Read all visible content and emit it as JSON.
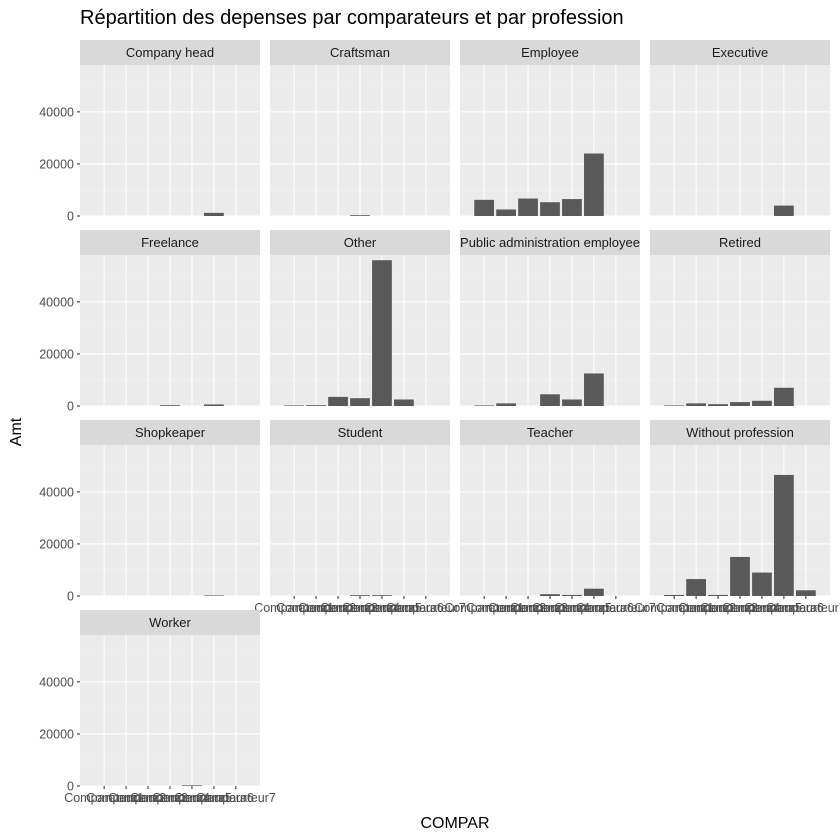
{
  "chart_data": {
    "type": "bar",
    "layout": "facet_wrap",
    "title": "Répartition des depenses par comparateurs et  par profession",
    "xlabel": "COMPAR",
    "ylabel": "Amt",
    "ylim": [
      0,
      58000
    ],
    "y_ticks": [
      0,
      20000,
      40000
    ],
    "y_tick_labels": [
      "0",
      "20000",
      "40000"
    ],
    "categories": [
      "Comparateur1",
      "Comparateur2",
      "Comparateur3",
      "Comparateur4",
      "Comparateur5",
      "Comparateur6",
      "Comparateur7"
    ],
    "x_tick_labels": [
      "Comparateur1",
      "Comparateur2",
      "Comparateur3",
      "Comparateur4",
      "Comparateur5",
      "Comparateur6",
      "Comparateur7"
    ],
    "facets": [
      {
        "name": "Company head",
        "values": [
          0,
          0,
          0,
          0,
          0,
          1200,
          0
        ]
      },
      {
        "name": "Craftsman",
        "values": [
          0,
          0,
          0,
          300,
          0,
          0,
          0
        ]
      },
      {
        "name": "Employee",
        "values": [
          6200,
          2500,
          6700,
          5300,
          6500,
          24000,
          0
        ]
      },
      {
        "name": "Executive",
        "values": [
          0,
          0,
          0,
          0,
          0,
          4000,
          0
        ]
      },
      {
        "name": "Freelance",
        "values": [
          0,
          0,
          0,
          300,
          0,
          600,
          0
        ]
      },
      {
        "name": "Other",
        "values": [
          200,
          300,
          3500,
          3000,
          56000,
          2500,
          0
        ]
      },
      {
        "name": "Public administration employee",
        "values": [
          200,
          1000,
          0,
          4500,
          2500,
          12500,
          0
        ]
      },
      {
        "name": "Retired",
        "values": [
          200,
          1000,
          700,
          1500,
          2000,
          7000,
          0
        ]
      },
      {
        "name": "Shopkeaper",
        "values": [
          0,
          0,
          0,
          0,
          0,
          200,
          0
        ]
      },
      {
        "name": "Student",
        "values": [
          0,
          0,
          0,
          300,
          300,
          0,
          0
        ]
      },
      {
        "name": "Teacher",
        "values": [
          0,
          0,
          0,
          700,
          400,
          2800,
          0
        ]
      },
      {
        "name": "Without profession",
        "values": [
          400,
          6500,
          400,
          15000,
          9000,
          46500,
          2200
        ]
      },
      {
        "name": "Worker",
        "values": [
          0,
          0,
          0,
          0,
          250,
          0,
          0
        ]
      }
    ]
  }
}
